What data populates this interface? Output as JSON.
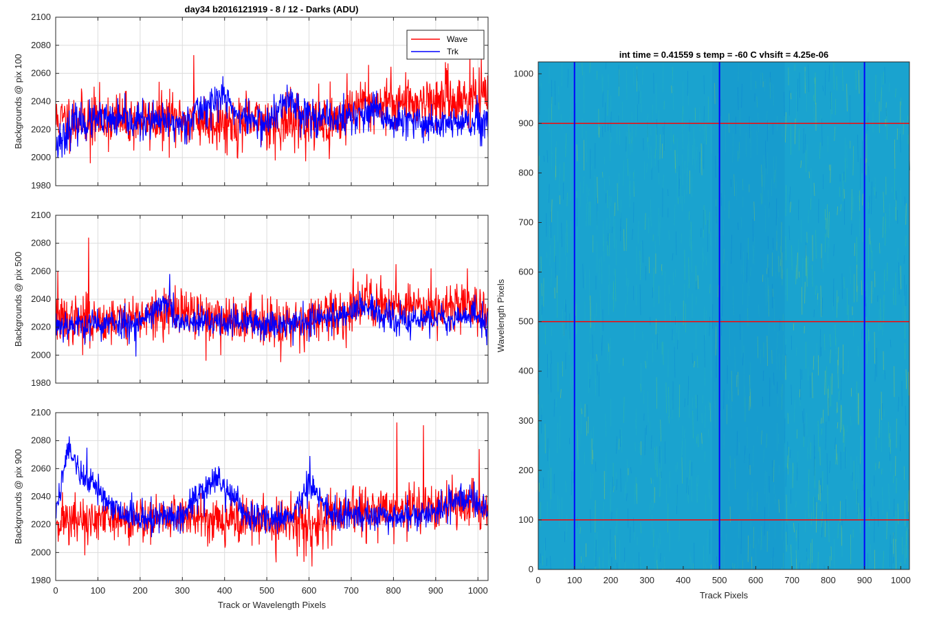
{
  "figure": {
    "main_title": "day34 b2016121919 - 8 / 12 - Darks (ADU)"
  },
  "chart_data": [
    {
      "type": "line",
      "ylabel": "Backgrounds @ pix 100",
      "xlabel": "",
      "xlim": [
        0,
        1024
      ],
      "ylim": [
        1980,
        2100
      ],
      "xticks": [
        0,
        100,
        200,
        300,
        400,
        500,
        600,
        700,
        800,
        900,
        1000
      ],
      "yticks": [
        1980,
        2000,
        2020,
        2040,
        2060,
        2080,
        2100
      ],
      "show_xtick_labels": false,
      "grid": true,
      "legend": {
        "placement": "top-right",
        "entries": [
          "Wave",
          "Trk"
        ]
      },
      "series": [
        {
          "name": "Wave",
          "color": "#ff0000",
          "profile": [
            [
              0,
              2026
            ],
            [
              100,
              2028
            ],
            [
              200,
              2026
            ],
            [
              300,
              2027
            ],
            [
              400,
              2025
            ],
            [
              500,
              2026
            ],
            [
              600,
              2026
            ],
            [
              680,
              2027
            ],
            [
              700,
              2036
            ],
            [
              800,
              2040
            ],
            [
              900,
              2040
            ],
            [
              1000,
              2042
            ],
            [
              1024,
              2042
            ]
          ],
          "noise": 9.5,
          "seed": 11,
          "spikes": [
            [
              63,
              2037
            ],
            [
              78,
              2020
            ],
            [
              82,
              1996
            ],
            [
              245,
              2054
            ],
            [
              270,
              2049
            ],
            [
              327,
              2073
            ],
            [
              430,
              2000
            ],
            [
              520,
              1998
            ],
            [
              612,
              2005
            ],
            [
              648,
              1999
            ],
            [
              690,
              2060
            ],
            [
              741,
              2066
            ],
            [
              923,
              2068
            ],
            [
              981,
              2075
            ]
          ]
        },
        {
          "name": "Trk",
          "color": "#0000ff",
          "profile": [
            [
              0,
              2012
            ],
            [
              20,
              2016
            ],
            [
              40,
              2024
            ],
            [
              100,
              2026
            ],
            [
              200,
              2026
            ],
            [
              300,
              2024
            ],
            [
              330,
              2032
            ],
            [
              390,
              2042
            ],
            [
              400,
              2044
            ],
            [
              430,
              2030
            ],
            [
              500,
              2024
            ],
            [
              528,
              2033
            ],
            [
              555,
              2042
            ],
            [
              580,
              2033
            ],
            [
              640,
              2026
            ],
            [
              720,
              2030
            ],
            [
              760,
              2032
            ],
            [
              800,
              2025
            ],
            [
              1000,
              2024
            ],
            [
              1024,
              2022
            ]
          ],
          "noise": 6.5,
          "seed": 23,
          "spikes": [
            [
              5,
              2000
            ],
            [
              15,
              2000
            ],
            [
              396,
              2058
            ],
            [
              548,
              2052
            ]
          ]
        }
      ]
    },
    {
      "type": "line",
      "ylabel": "Backgrounds @ pix 500",
      "xlabel": "",
      "xlim": [
        0,
        1024
      ],
      "ylim": [
        1980,
        2100
      ],
      "xticks": [
        0,
        100,
        200,
        300,
        400,
        500,
        600,
        700,
        800,
        900,
        1000
      ],
      "yticks": [
        1980,
        2000,
        2020,
        2040,
        2060,
        2080,
        2100
      ],
      "show_xtick_labels": false,
      "grid": true,
      "series": [
        {
          "name": "Wave",
          "color": "#ff0000",
          "profile": [
            [
              0,
              2024
            ],
            [
              100,
              2025
            ],
            [
              200,
              2028
            ],
            [
              300,
              2030
            ],
            [
              400,
              2026
            ],
            [
              500,
              2025
            ],
            [
              600,
              2025
            ],
            [
              690,
              2030
            ],
            [
              720,
              2040
            ],
            [
              800,
              2036
            ],
            [
              900,
              2035
            ],
            [
              1000,
              2035
            ],
            [
              1024,
              2032
            ]
          ],
          "noise": 8.5,
          "seed": 37,
          "spikes": [
            [
              5,
              2060
            ],
            [
              64,
              2000
            ],
            [
              78,
              2084
            ],
            [
              356,
              1996
            ],
            [
              533,
              1995
            ],
            [
              589,
              2002
            ],
            [
              705,
              2062
            ],
            [
              806,
              2065
            ],
            [
              889,
              2062
            ],
            [
              975,
              2062
            ]
          ]
        },
        {
          "name": "Trk",
          "color": "#0000ff",
          "profile": [
            [
              0,
              2022
            ],
            [
              100,
              2022
            ],
            [
              200,
              2024
            ],
            [
              240,
              2034
            ],
            [
              270,
              2036
            ],
            [
              290,
              2022
            ],
            [
              400,
              2024
            ],
            [
              500,
              2022
            ],
            [
              600,
              2024
            ],
            [
              690,
              2030
            ],
            [
              720,
              2036
            ],
            [
              760,
              2030
            ],
            [
              800,
              2024
            ],
            [
              900,
              2026
            ],
            [
              1000,
              2028
            ],
            [
              1024,
              2022
            ]
          ],
          "noise": 5.5,
          "seed": 53,
          "spikes": [
            [
              190,
              1999
            ],
            [
              270,
              2058
            ]
          ]
        }
      ]
    },
    {
      "type": "line",
      "ylabel": "Backgrounds @ pix 900",
      "xlabel": "Track or Wavelength Pixels",
      "xlim": [
        0,
        1024
      ],
      "ylim": [
        1980,
        2100
      ],
      "xticks": [
        0,
        100,
        200,
        300,
        400,
        500,
        600,
        700,
        800,
        900,
        1000
      ],
      "yticks": [
        1980,
        2000,
        2020,
        2040,
        2060,
        2080,
        2100
      ],
      "show_xtick_labels": true,
      "grid": true,
      "series": [
        {
          "name": "Wave",
          "color": "#ff0000",
          "profile": [
            [
              0,
              2024
            ],
            [
              100,
              2022
            ],
            [
              200,
              2024
            ],
            [
              300,
              2026
            ],
            [
              400,
              2024
            ],
            [
              500,
              2022
            ],
            [
              600,
              2020
            ],
            [
              700,
              2028
            ],
            [
              800,
              2030
            ],
            [
              900,
              2032
            ],
            [
              1000,
              2034
            ],
            [
              1024,
              2032
            ]
          ],
          "noise": 8.5,
          "seed": 71,
          "spikes": [
            [
              69,
              1998
            ],
            [
              522,
              1993
            ],
            [
              607,
              1990
            ],
            [
              808,
              2093
            ],
            [
              871,
              2091
            ],
            [
              1003,
              2074
            ]
          ]
        },
        {
          "name": "Trk",
          "color": "#0000ff",
          "profile": [
            [
              0,
              2028
            ],
            [
              25,
              2070
            ],
            [
              40,
              2072
            ],
            [
              60,
              2055
            ],
            [
              100,
              2045
            ],
            [
              150,
              2030
            ],
            [
              200,
              2024
            ],
            [
              300,
              2026
            ],
            [
              330,
              2040
            ],
            [
              380,
              2052
            ],
            [
              420,
              2040
            ],
            [
              460,
              2024
            ],
            [
              560,
              2026
            ],
            [
              600,
              2050
            ],
            [
              620,
              2040
            ],
            [
              650,
              2026
            ],
            [
              700,
              2028
            ],
            [
              800,
              2025
            ],
            [
              900,
              2028
            ],
            [
              960,
              2040
            ],
            [
              1000,
              2036
            ],
            [
              1024,
              2030
            ]
          ],
          "noise": 5.5,
          "seed": 89,
          "spikes": [
            [
              32,
              2083
            ],
            [
              74,
              2075
            ],
            [
              602,
              2069
            ]
          ]
        }
      ]
    },
    {
      "type": "heatmap",
      "title": "int time = 0.41559 s    temp = -60 C    vhsift = 4.25e-06",
      "xlabel": "Track Pixels",
      "ylabel": "Wavelength Pixels",
      "xlim": [
        0,
        1024
      ],
      "ylim": [
        0,
        1024
      ],
      "xticks": [
        0,
        100,
        200,
        300,
        400,
        500,
        600,
        700,
        800,
        900,
        1000
      ],
      "yticks": [
        0,
        100,
        200,
        300,
        400,
        500,
        600,
        700,
        800,
        900,
        1000
      ],
      "colormap": "parula",
      "vertical_markers": {
        "color": "#0000ff",
        "positions": [
          100,
          500,
          900
        ]
      },
      "horizontal_markers": {
        "color": "#ff0000",
        "positions": [
          100,
          500,
          900
        ]
      }
    }
  ]
}
